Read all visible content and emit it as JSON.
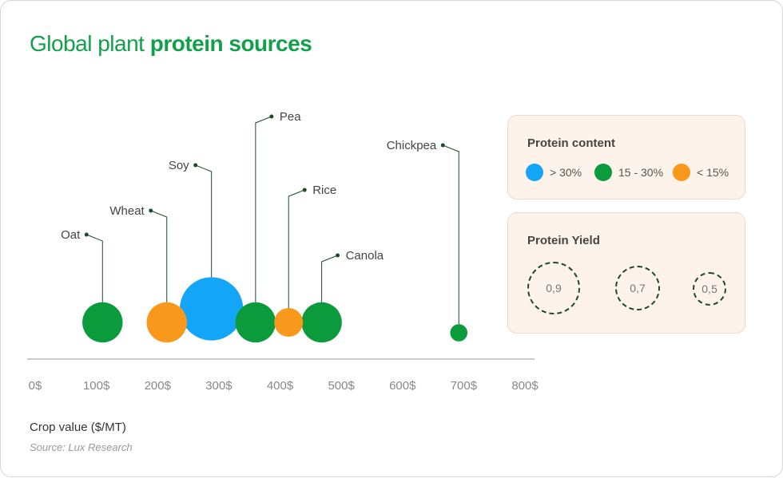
{
  "title": {
    "regular": "Global plant ",
    "bold": "protein sources"
  },
  "xlabel": "Crop value ($/MT)",
  "source": "Source: Lux Research",
  "colors": {
    "high": "#13a5f7",
    "mid": "#0b9a3c",
    "low": "#f8991d",
    "axis": "#9a9a9a",
    "leader": "#1d4a2a",
    "title": "#12a04a"
  },
  "legend": {
    "protein_content": {
      "title": "Protein content",
      "items": [
        {
          "label": "> 30%",
          "color": "#13a5f7"
        },
        {
          "label": "15 - 30%",
          "color": "#0b9a3c"
        },
        {
          "label": "< 15%",
          "color": "#f8991d"
        }
      ]
    },
    "protein_yield": {
      "title": "Protein Yield",
      "items": [
        "0,9",
        "0,7",
        "0,5"
      ]
    }
  },
  "chart_data": {
    "type": "scatter",
    "title": "Global plant protein sources",
    "xlabel": "Crop value ($/MT)",
    "xlim": [
      0,
      800
    ],
    "x_ticks": [
      "0$",
      "100$",
      "200$",
      "300$",
      "400$",
      "500$",
      "600$",
      "700$",
      "800$"
    ],
    "points": [
      {
        "name": "Oat",
        "x": 110,
        "yield": 0.7,
        "protein": "15 - 30%",
        "color": "#0b9a3c"
      },
      {
        "name": "Wheat",
        "x": 215,
        "yield": 0.7,
        "protein": "< 15%",
        "color": "#f8991d"
      },
      {
        "name": "Soy",
        "x": 288,
        "yield": 1.1,
        "protein": "> 30%",
        "color": "#13a5f7"
      },
      {
        "name": "Pea",
        "x": 360,
        "yield": 0.7,
        "protein": "15 - 30%",
        "color": "#0b9a3c"
      },
      {
        "name": "Rice",
        "x": 414,
        "yield": 0.5,
        "protein": "< 15%",
        "color": "#f8991d"
      },
      {
        "name": "Canola",
        "x": 468,
        "yield": 0.7,
        "protein": "15 - 30%",
        "color": "#0b9a3c"
      },
      {
        "name": "Chickpea",
        "x": 692,
        "yield": 0.3,
        "protein": "15 - 30%",
        "color": "#0b9a3c"
      }
    ]
  }
}
